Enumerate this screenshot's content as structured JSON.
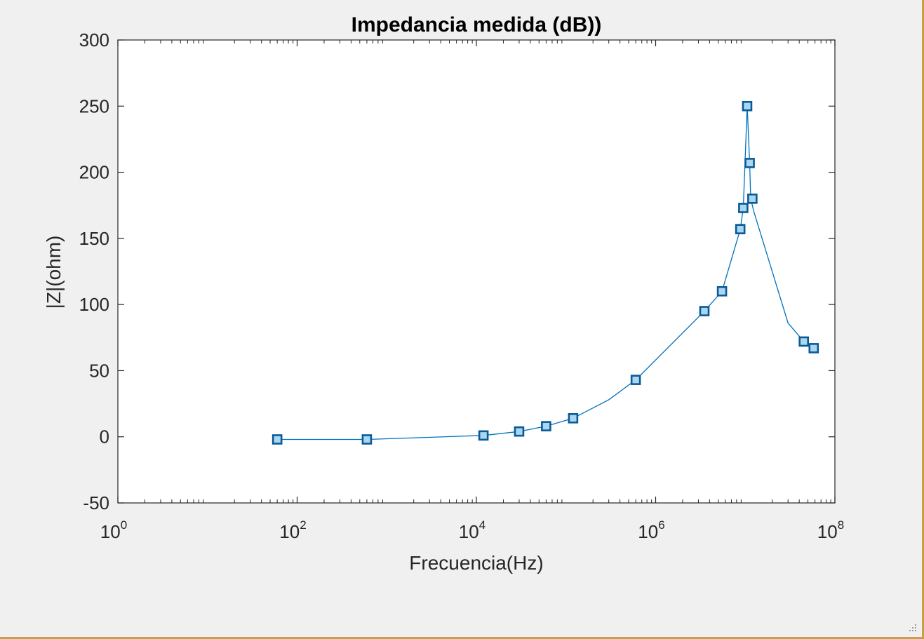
{
  "chart_data": {
    "type": "line",
    "title": "Impedancia medida (dB))",
    "xlabel": "Frecuencia(Hz)",
    "ylabel": "|Z|(ohm)",
    "xscale": "log",
    "xlim": [
      1,
      100000000
    ],
    "ylim": [
      -50,
      300
    ],
    "x_ticks": [
      {
        "value": 1,
        "base": "10",
        "exp": "0"
      },
      {
        "value": 100,
        "base": "10",
        "exp": "2"
      },
      {
        "value": 10000,
        "base": "10",
        "exp": "4"
      },
      {
        "value": 1000000,
        "base": "10",
        "exp": "6"
      },
      {
        "value": 100000000,
        "base": "10",
        "exp": "8"
      }
    ],
    "y_ticks": [
      {
        "value": 300,
        "label": "300"
      },
      {
        "value": 250,
        "label": "250"
      },
      {
        "value": 200,
        "label": "200"
      },
      {
        "value": 150,
        "label": "150"
      },
      {
        "value": 100,
        "label": "100"
      },
      {
        "value": 50,
        "label": "50"
      },
      {
        "value": 0,
        "label": "0"
      },
      {
        "value": -50,
        "label": "-50"
      }
    ],
    "grid": false,
    "box": true,
    "series": [
      {
        "line_color": "#0072bd",
        "marker": "square",
        "marker_face": "#a9d6f0",
        "marker_edge": "#0a5a96",
        "line_x": [
          60,
          600,
          12000,
          30000,
          60000,
          120000,
          300000,
          600000,
          3500000,
          5500000,
          8800000,
          9500000,
          10500000,
          11200000,
          11500000,
          12500000,
          30000000,
          45000000,
          58000000
        ],
        "line_y": [
          -2,
          -2,
          1,
          4,
          8,
          14,
          28,
          43,
          95,
          110,
          157,
          173,
          250,
          207,
          180,
          170,
          86,
          72,
          67
        ],
        "marker_x": [
          60,
          600,
          12000,
          30000,
          60000,
          120000,
          600000,
          3500000,
          5500000,
          8800000,
          9500000,
          10500000,
          11200000,
          12000000,
          45000000,
          58000000
        ],
        "marker_y": [
          -2,
          -2,
          1,
          4,
          8,
          14,
          43,
          95,
          110,
          157,
          173,
          250,
          207,
          180,
          72,
          67
        ]
      }
    ]
  }
}
